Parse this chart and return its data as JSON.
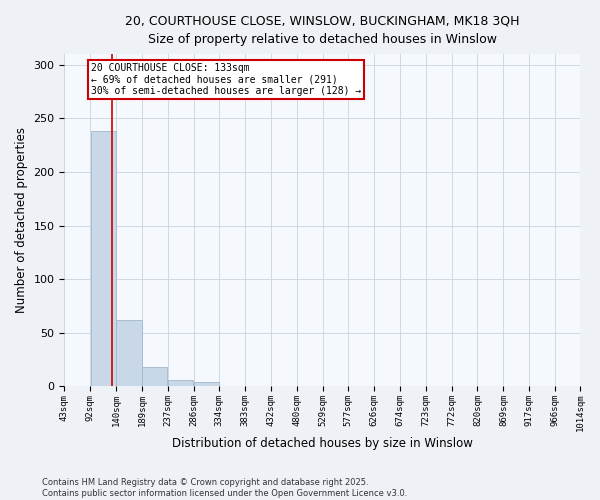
{
  "title_line1": "20, COURTHOUSE CLOSE, WINSLOW, BUCKINGHAM, MK18 3QH",
  "title_line2": "Size of property relative to detached houses in Winslow",
  "xlabel": "Distribution of detached houses by size in Winslow",
  "ylabel": "Number of detached properties",
  "bar_edges": [
    43,
    92,
    140,
    189,
    237,
    286,
    334,
    383,
    432,
    480,
    529,
    577,
    626,
    674,
    723,
    772,
    820,
    869,
    917,
    966,
    1014
  ],
  "bar_heights": [
    0,
    238,
    62,
    18,
    6,
    4,
    0,
    0,
    0,
    0,
    0,
    0,
    0,
    0,
    0,
    0,
    0,
    0,
    0,
    0
  ],
  "bar_color": "#c8d8e8",
  "bar_edgecolor": "#a0b8cc",
  "property_size": 133,
  "redline_color": "#cc0000",
  "annotation_text": "20 COURTHOUSE CLOSE: 133sqm\n← 69% of detached houses are smaller (291)\n30% of semi-detached houses are larger (128) →",
  "annotation_box_color": "#cc0000",
  "ylim": [
    0,
    310
  ],
  "yticks": [
    0,
    50,
    100,
    150,
    200,
    250,
    300
  ],
  "tick_labels": [
    "43sqm",
    "92sqm",
    "140sqm",
    "189sqm",
    "237sqm",
    "286sqm",
    "334sqm",
    "383sqm",
    "432sqm",
    "480sqm",
    "529sqm",
    "577sqm",
    "626sqm",
    "674sqm",
    "723sqm",
    "772sqm",
    "820sqm",
    "869sqm",
    "917sqm",
    "966sqm",
    "1014sqm"
  ],
  "footnote": "Contains HM Land Registry data © Crown copyright and database right 2025.\nContains public sector information licensed under the Open Government Licence v3.0.",
  "bg_color": "#eef2f6",
  "plot_bg_color": "#f5f8fc",
  "grid_color": "#c8d4e0"
}
